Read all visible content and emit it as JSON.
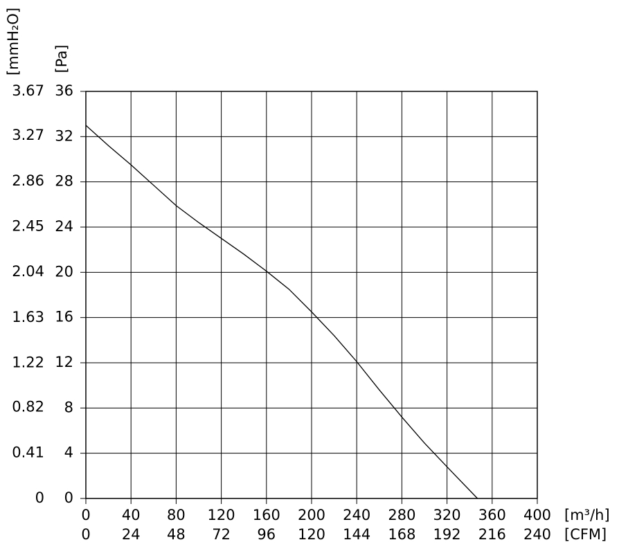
{
  "chart_data": {
    "type": "line",
    "x_label": "[m³/h]",
    "x2_label": "[CFM]",
    "y_label": "[Pa]",
    "y2_label": "[mmH₂O]",
    "x": [
      0,
      20,
      40,
      60,
      80,
      100,
      120,
      140,
      160,
      180,
      200,
      220,
      240,
      260,
      280,
      300,
      320,
      347
    ],
    "series": [
      {
        "color": "#000000",
        "values": [
          33.0,
          31.2,
          29.5,
          27.7,
          25.9,
          24.4,
          23.0,
          21.6,
          20.1,
          18.5,
          16.5,
          14.4,
          12.1,
          9.6,
          7.2,
          4.9,
          2.8,
          0
        ]
      }
    ],
    "xlim": [
      0,
      400
    ],
    "xticks": [
      0,
      40,
      80,
      120,
      160,
      200,
      240,
      280,
      320,
      360,
      400
    ],
    "x2lim": [
      0,
      240
    ],
    "x2ticks": [
      0,
      24,
      48,
      72,
      96,
      120,
      144,
      168,
      192,
      216,
      240
    ],
    "ylim": [
      0,
      36
    ],
    "yticks": [
      0,
      4,
      8,
      12,
      16,
      20,
      24,
      28,
      32,
      36
    ],
    "y2lim": [
      0,
      3.67
    ],
    "y2ticks": [
      0,
      0.41,
      0.82,
      1.22,
      1.63,
      2.04,
      2.45,
      2.86,
      3.27,
      3.67
    ],
    "grid": true
  }
}
